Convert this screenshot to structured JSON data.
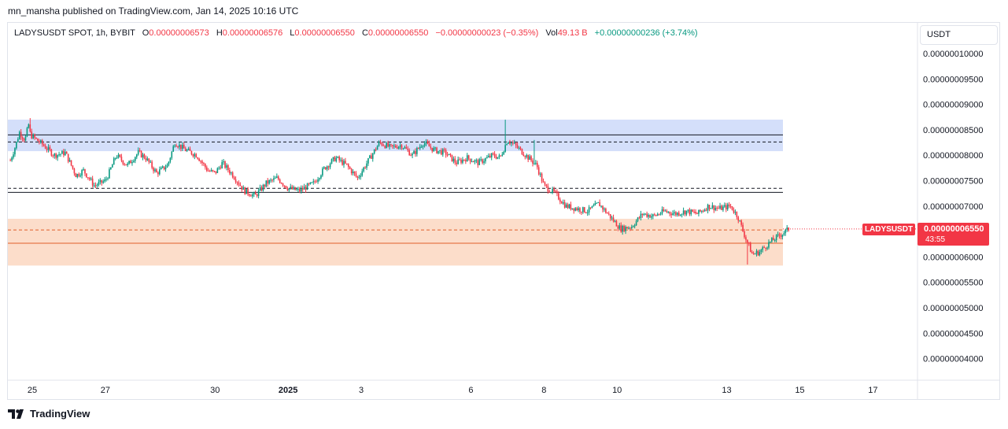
{
  "header": {
    "published": "mn_mansha published on TradingView.com, Jan 14, 2025 10:16 UTC"
  },
  "legend": {
    "symbol": "LADYSUSDT SPOT, 1h, BYBIT",
    "o_label": "O",
    "o_value": "0.00000006573",
    "h_label": "H",
    "h_value": "0.00000006576",
    "l_label": "L",
    "l_value": "0.00000006550",
    "c_label": "C",
    "c_value": "0.00000006550",
    "change": "−0.00000000023 (−0.35%)",
    "vol_label": "Vol",
    "vol_value": "49.13 B",
    "vol_change": "+0.00000000236 (+3.74%)"
  },
  "currency_button": "USDT",
  "price_tag": {
    "symbol": "LADYSUSDT",
    "value": "0.00000006550",
    "countdown": "43:55"
  },
  "footer": {
    "brand": "TradingView",
    "logo_icon": "tradingview-logo-icon"
  },
  "colors": {
    "up": "#089981",
    "down": "#f23645",
    "blue_zone": "#cfdcfa",
    "orange_zone": "#fcd9c4"
  },
  "chart_data": {
    "type": "candlestick",
    "y_tick_labels": [
      "0.00000010000",
      "0.00000009500",
      "0.00000009000",
      "0.00000008500",
      "0.00000008000",
      "0.00000007500",
      "0.00000007000",
      "0.00000006500",
      "0.00000006000",
      "0.00000005500",
      "0.00000005000",
      "0.00000004500",
      "0.00000004000"
    ],
    "y_ticks": [
      100,
      95,
      90,
      85,
      80,
      75,
      70,
      65,
      60,
      55,
      50,
      45,
      40
    ],
    "y_unit_scale": 1e-09,
    "x_ticks": [
      {
        "label": "25",
        "day": 0,
        "bold": false
      },
      {
        "label": "27",
        "day": 2,
        "bold": false
      },
      {
        "label": "30",
        "day": 5,
        "bold": false
      },
      {
        "label": "2025",
        "day": 7,
        "bold": true
      },
      {
        "label": "3",
        "day": 9,
        "bold": false
      },
      {
        "label": "6",
        "day": 12,
        "bold": false
      },
      {
        "label": "8",
        "day": 14,
        "bold": false
      },
      {
        "label": "10",
        "day": 16,
        "bold": false
      },
      {
        "label": "13",
        "day": 19,
        "bold": false
      },
      {
        "label": "15",
        "day": 21,
        "bold": false
      },
      {
        "label": "17",
        "day": 23,
        "bold": false
      }
    ],
    "zones": [
      {
        "name": "resistance",
        "top": 87.0,
        "bottom": 80.8
      },
      {
        "name": "support",
        "top": 67.5,
        "bottom": 58.3
      }
    ],
    "lines": [
      {
        "value": 84.0,
        "style": "solid"
      },
      {
        "value": 82.6,
        "style": "dashed"
      },
      {
        "value": 73.5,
        "style": "dashed"
      },
      {
        "value": 72.7,
        "style": "solid"
      },
      {
        "value": 65.3,
        "style": "dashed"
      },
      {
        "value": 62.7,
        "style": "solid"
      }
    ],
    "last_price": 65.5,
    "path": [
      [
        -0.6,
        79
      ],
      [
        -0.45,
        82
      ],
      [
        -0.35,
        84.5
      ],
      [
        -0.2,
        83
      ],
      [
        -0.1,
        86
      ],
      [
        -0.05,
        84
      ],
      [
        0.3,
        82
      ],
      [
        0.6,
        80
      ],
      [
        0.9,
        80.5
      ],
      [
        1.2,
        76
      ],
      [
        1.4,
        77
      ],
      [
        1.7,
        74
      ],
      [
        2.0,
        75
      ],
      [
        2.1,
        76.5
      ],
      [
        2.3,
        80
      ],
      [
        2.6,
        78
      ],
      [
        2.9,
        80.5
      ],
      [
        3.1,
        79.5
      ],
      [
        3.4,
        76.5
      ],
      [
        3.7,
        78
      ],
      [
        3.9,
        82.5
      ],
      [
        4.2,
        81
      ],
      [
        4.5,
        80
      ],
      [
        4.8,
        77
      ],
      [
        5.0,
        76.5
      ],
      [
        5.2,
        78.5
      ],
      [
        5.5,
        76
      ],
      [
        5.8,
        73
      ],
      [
        6.1,
        72
      ],
      [
        6.4,
        74.5
      ],
      [
        6.7,
        75.5
      ],
      [
        7.0,
        73.5
      ],
      [
        7.3,
        73
      ],
      [
        7.7,
        74.5
      ],
      [
        8.0,
        77.5
      ],
      [
        8.3,
        79.5
      ],
      [
        8.6,
        78
      ],
      [
        8.9,
        75.5
      ],
      [
        9.2,
        79
      ],
      [
        9.5,
        82.5
      ],
      [
        9.8,
        81.5
      ],
      [
        10.1,
        82
      ],
      [
        10.4,
        80
      ],
      [
        10.7,
        82.5
      ],
      [
        11.0,
        81
      ],
      [
        11.3,
        80.5
      ],
      [
        11.6,
        78.5
      ],
      [
        11.9,
        79.5
      ],
      [
        12.2,
        78.5
      ],
      [
        12.6,
        80
      ],
      [
        12.8,
        79.5
      ],
      [
        13.0,
        83
      ],
      [
        13.2,
        82
      ],
      [
        13.5,
        80
      ],
      [
        13.8,
        78
      ],
      [
        14.0,
        74
      ],
      [
        14.3,
        72.5
      ],
      [
        14.6,
        70
      ],
      [
        14.9,
        69.5
      ],
      [
        15.2,
        69
      ],
      [
        15.5,
        70.5
      ],
      [
        15.8,
        68
      ],
      [
        16.1,
        65.5
      ],
      [
        16.4,
        66
      ],
      [
        16.7,
        68.5
      ],
      [
        17.0,
        68
      ],
      [
        17.3,
        69
      ],
      [
        17.6,
        68.5
      ],
      [
        17.9,
        69
      ],
      [
        18.2,
        68.5
      ],
      [
        18.5,
        70
      ],
      [
        18.8,
        69.5
      ],
      [
        19.1,
        70
      ],
      [
        19.3,
        68
      ],
      [
        19.5,
        64
      ],
      [
        19.7,
        60.5
      ],
      [
        19.9,
        61
      ],
      [
        20.2,
        63
      ],
      [
        20.5,
        64.5
      ],
      [
        20.7,
        65.5
      ]
    ]
  }
}
